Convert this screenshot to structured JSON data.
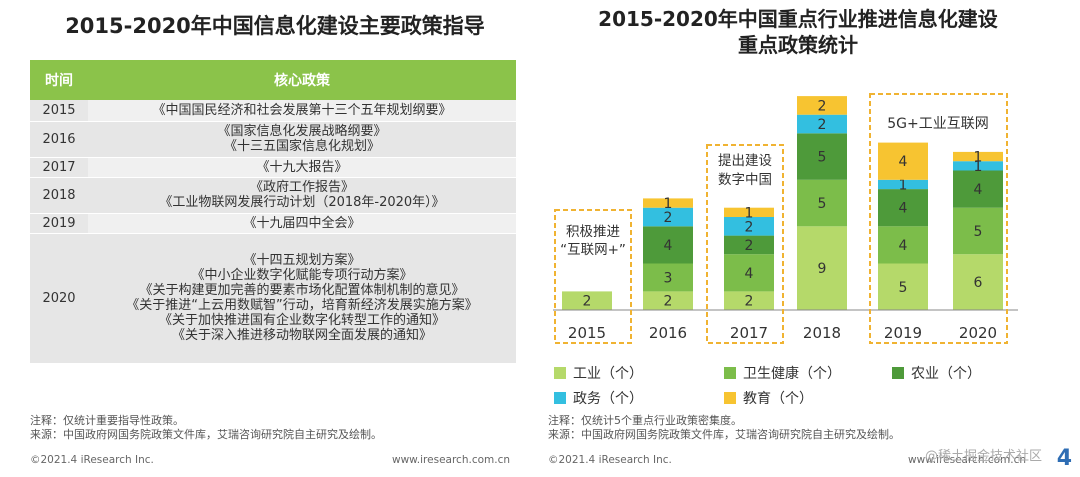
{
  "left": {
    "title": "2015-2020年中国信息化建设主要政策指导",
    "headers": {
      "year": "时间",
      "policy": "核心政策"
    },
    "rows": [
      {
        "year": "2015",
        "policies": [
          "《中国国民经济和社会发展第十三个五年规划纲要》"
        ]
      },
      {
        "year": "2016",
        "policies": [
          "《国家信息化发展战略纲要》",
          "《十三五国家信息化规划》"
        ]
      },
      {
        "year": "2017",
        "policies": [
          "《十九大报告》"
        ]
      },
      {
        "year": "2018",
        "policies": [
          "《政府工作报告》",
          "《工业物联网发展行动计划（2018年-2020年）》"
        ]
      },
      {
        "year": "2019",
        "policies": [
          "《十九届四中全会》"
        ]
      },
      {
        "year": "2020",
        "policies": [
          "《十四五规划方案》",
          "《中小企业数字化赋能专项行动方案》",
          "《关于构建更加完善的要素市场化配置体制机制的意见》",
          "《关于推进“上云用数赋智”行动，培育新经济发展实施方案》",
          "《关于加快推进国有企业数字化转型工作的通知》",
          "《关于深入推进移动物联网全面发展的通知》"
        ]
      }
    ],
    "note": "注释：仅统计重要指导性政策。",
    "source": "来源：中国政府网国务院政策文件库，艾瑞咨询研究院自主研究及绘制。",
    "copyright": "©2021.4 iResearch Inc.",
    "website": "www.iresearch.com.cn"
  },
  "right": {
    "note": "注释：仅统计5个重点行业政策密集度。",
    "source": "来源：中国政府网国务院政策文件库，艾瑞咨询研究院自主研究及绘制。",
    "copyright": "©2021.4 iResearch Inc.",
    "website": "www.iresearch.com.cn"
  },
  "page_number": "4",
  "watermark": "@稀土掘金技术社区",
  "chart_data": {
    "type": "bar",
    "stacked": true,
    "title": "2015-2020年中国重点行业推进信息化建设重点政策统计",
    "title_lines": [
      "2015-2020年中国重点行业推进信息化建设",
      "重点政策统计"
    ],
    "categories": [
      "2015",
      "2016",
      "2017",
      "2018",
      "2019",
      "2020"
    ],
    "series": [
      {
        "name": "工业（个）",
        "color": "#b5d96a",
        "values": [
          2,
          2,
          2,
          9,
          5,
          6
        ]
      },
      {
        "name": "卫生健康（个）",
        "color": "#7cbd4a",
        "values": [
          0,
          3,
          4,
          5,
          4,
          5
        ]
      },
      {
        "name": "农业（个）",
        "color": "#4e9a3a",
        "values": [
          0,
          4,
          2,
          5,
          4,
          4
        ]
      },
      {
        "name": "政务（个）",
        "color": "#33bfe0",
        "values": [
          0,
          2,
          2,
          2,
          1,
          1
        ]
      },
      {
        "name": "教育（个）",
        "color": "#f7c431",
        "values": [
          0,
          1,
          1,
          2,
          4,
          1
        ]
      }
    ],
    "segment_labels": [
      [
        "2",
        "",
        "",
        "",
        ""
      ],
      [
        "2",
        "3",
        "4",
        "2",
        "1"
      ],
      [
        "2",
        "4",
        "2",
        "2",
        "1"
      ],
      [
        "9",
        "5",
        "5",
        "2",
        "2"
      ],
      [
        "5",
        "4",
        "4",
        "1",
        "4"
      ],
      [
        "6",
        "5",
        "4",
        "1",
        "1"
      ]
    ],
    "annotations": [
      {
        "text": "积极推进“互联网+”",
        "lines": [
          "积极推进",
          "“互联网+”"
        ],
        "categories": [
          "2015"
        ]
      },
      {
        "text": "提出建设数字中国",
        "lines": [
          "提出建设",
          "数字中国"
        ],
        "categories": [
          "2017"
        ]
      },
      {
        "text": "5G+工业互联网",
        "lines": [
          "5G+工业互联网"
        ],
        "categories": [
          "2019",
          "2020"
        ]
      }
    ],
    "xlabel": "",
    "ylabel": "",
    "grid": false,
    "legend_position": "bottom"
  }
}
